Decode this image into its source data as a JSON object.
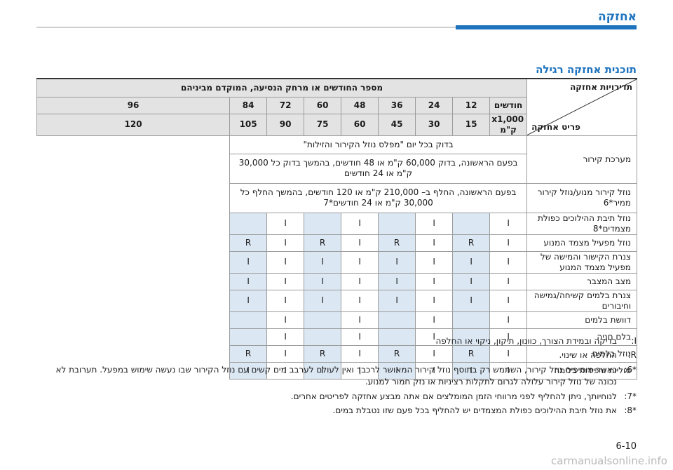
{
  "section_title": "אחזקה",
  "subtitle": "תוכנית אחזקה רגילה",
  "table": {
    "header_corner_top": "תדירויות אחזקה",
    "header_corner_bottom": "פריט אחזקה",
    "header_span": "מספר החודשים או מרחק הנסיעה, המוקדם מביניהם",
    "months_label": "חודשים",
    "months": [
      "12",
      "24",
      "36",
      "48",
      "60",
      "72",
      "84",
      "96"
    ],
    "km_label": "x1,000 ק\"מ",
    "km": [
      "15",
      "30",
      "45",
      "60",
      "75",
      "90",
      "105",
      "120"
    ],
    "rows": [
      {
        "label": "מערכת קירור",
        "desc": "בדוק בכל יום \"מפלס נוזל הקירור והזילות\""
      },
      {
        "label": "",
        "desc": "בפעם הראשונה, בדוק 60,000 ק\"מ או 48 חודשים, בהמשך בדוק כל 30,000 ק\"מ או 24 חודשים"
      },
      {
        "label": "נוזל קירור מנוע/נוזל קירור ממיר*6",
        "desc": "בפעם הראשונה, החלף ב– 210,000 ק\"מ או 120 חודשים, בהמשך החלף כל 30,000 ק\"מ או 24 חודשים*7"
      },
      {
        "label": "נוזל תיבת ההילוכים כפולת מצמדים*8",
        "cells": [
          "I",
          "",
          "I",
          "",
          "I",
          "",
          "I",
          ""
        ]
      },
      {
        "label": "נוזל מפעיל מצמד המנוע",
        "cells": [
          "I",
          "R",
          "I",
          "R",
          "I",
          "R",
          "I",
          "R"
        ]
      },
      {
        "label": "צנרת הקישור והמישה של מפעיל מצמד המנוע",
        "cells": [
          "I",
          "I",
          "I",
          "I",
          "I",
          "I",
          "I",
          "I"
        ]
      },
      {
        "label": "מצב המצבר",
        "cells": [
          "I",
          "I",
          "I",
          "I",
          "I",
          "I",
          "I",
          "I"
        ]
      },
      {
        "label": "צנרת בלמים קשיחה/גמישה וחיבורים",
        "cells": [
          "I",
          "I",
          "I",
          "I",
          "I",
          "I",
          "I",
          "I"
        ]
      },
      {
        "label": "דוושת בלמים",
        "cells": [
          "I",
          "",
          "I",
          "",
          "I",
          "",
          "I",
          ""
        ]
      },
      {
        "label": "בלם חניה",
        "cells": [
          "I",
          "",
          "I",
          "",
          "I",
          "",
          "I",
          ""
        ]
      },
      {
        "label": "נוזל בלמים",
        "cells": [
          "I",
          "R",
          "I",
          "R",
          "I",
          "R",
          "I",
          "R"
        ]
      },
      {
        "label": "סוליות ורפידות בלימה",
        "cells": [
          "I",
          "I",
          "I",
          "I",
          "I",
          "I",
          "I",
          "I"
        ]
      }
    ]
  },
  "notes": [
    {
      "key": "I:",
      "text": "בדיקה ובמידת הצורך, כוונון, תיקון, ניקוי או החלפה"
    },
    {
      "key": "R:",
      "text": "החלפה או שינוי."
    },
    {
      "key": "*6:",
      "text": "כאשר מוסיפים נוזל קירור, השתמש רק בתוסף נוזל קירור המאושר לרכבך ואין לעולם לערבב מים קשים עם נוזל הקירור שבו נעשה שימוש במפעל. תערובת לא נכונה של נוזל קירור עלולה לגרום לתקלות רציניות או נזק חמור למנוע."
    },
    {
      "key": "*7:",
      "text": "לנוחיותך, ניתן להחליף לפני מרווחי הזמן המומלצים אם אתה מבצע אחזקה לפריטים אחרים."
    },
    {
      "key": "*8:",
      "text": "את נוזל תיבת ההילוכים כפולת המצמדים יש להחליף בכל פעם שזו נטבלת במים."
    }
  ],
  "page_number": "6-10",
  "watermark": "carmanualsonline.info"
}
